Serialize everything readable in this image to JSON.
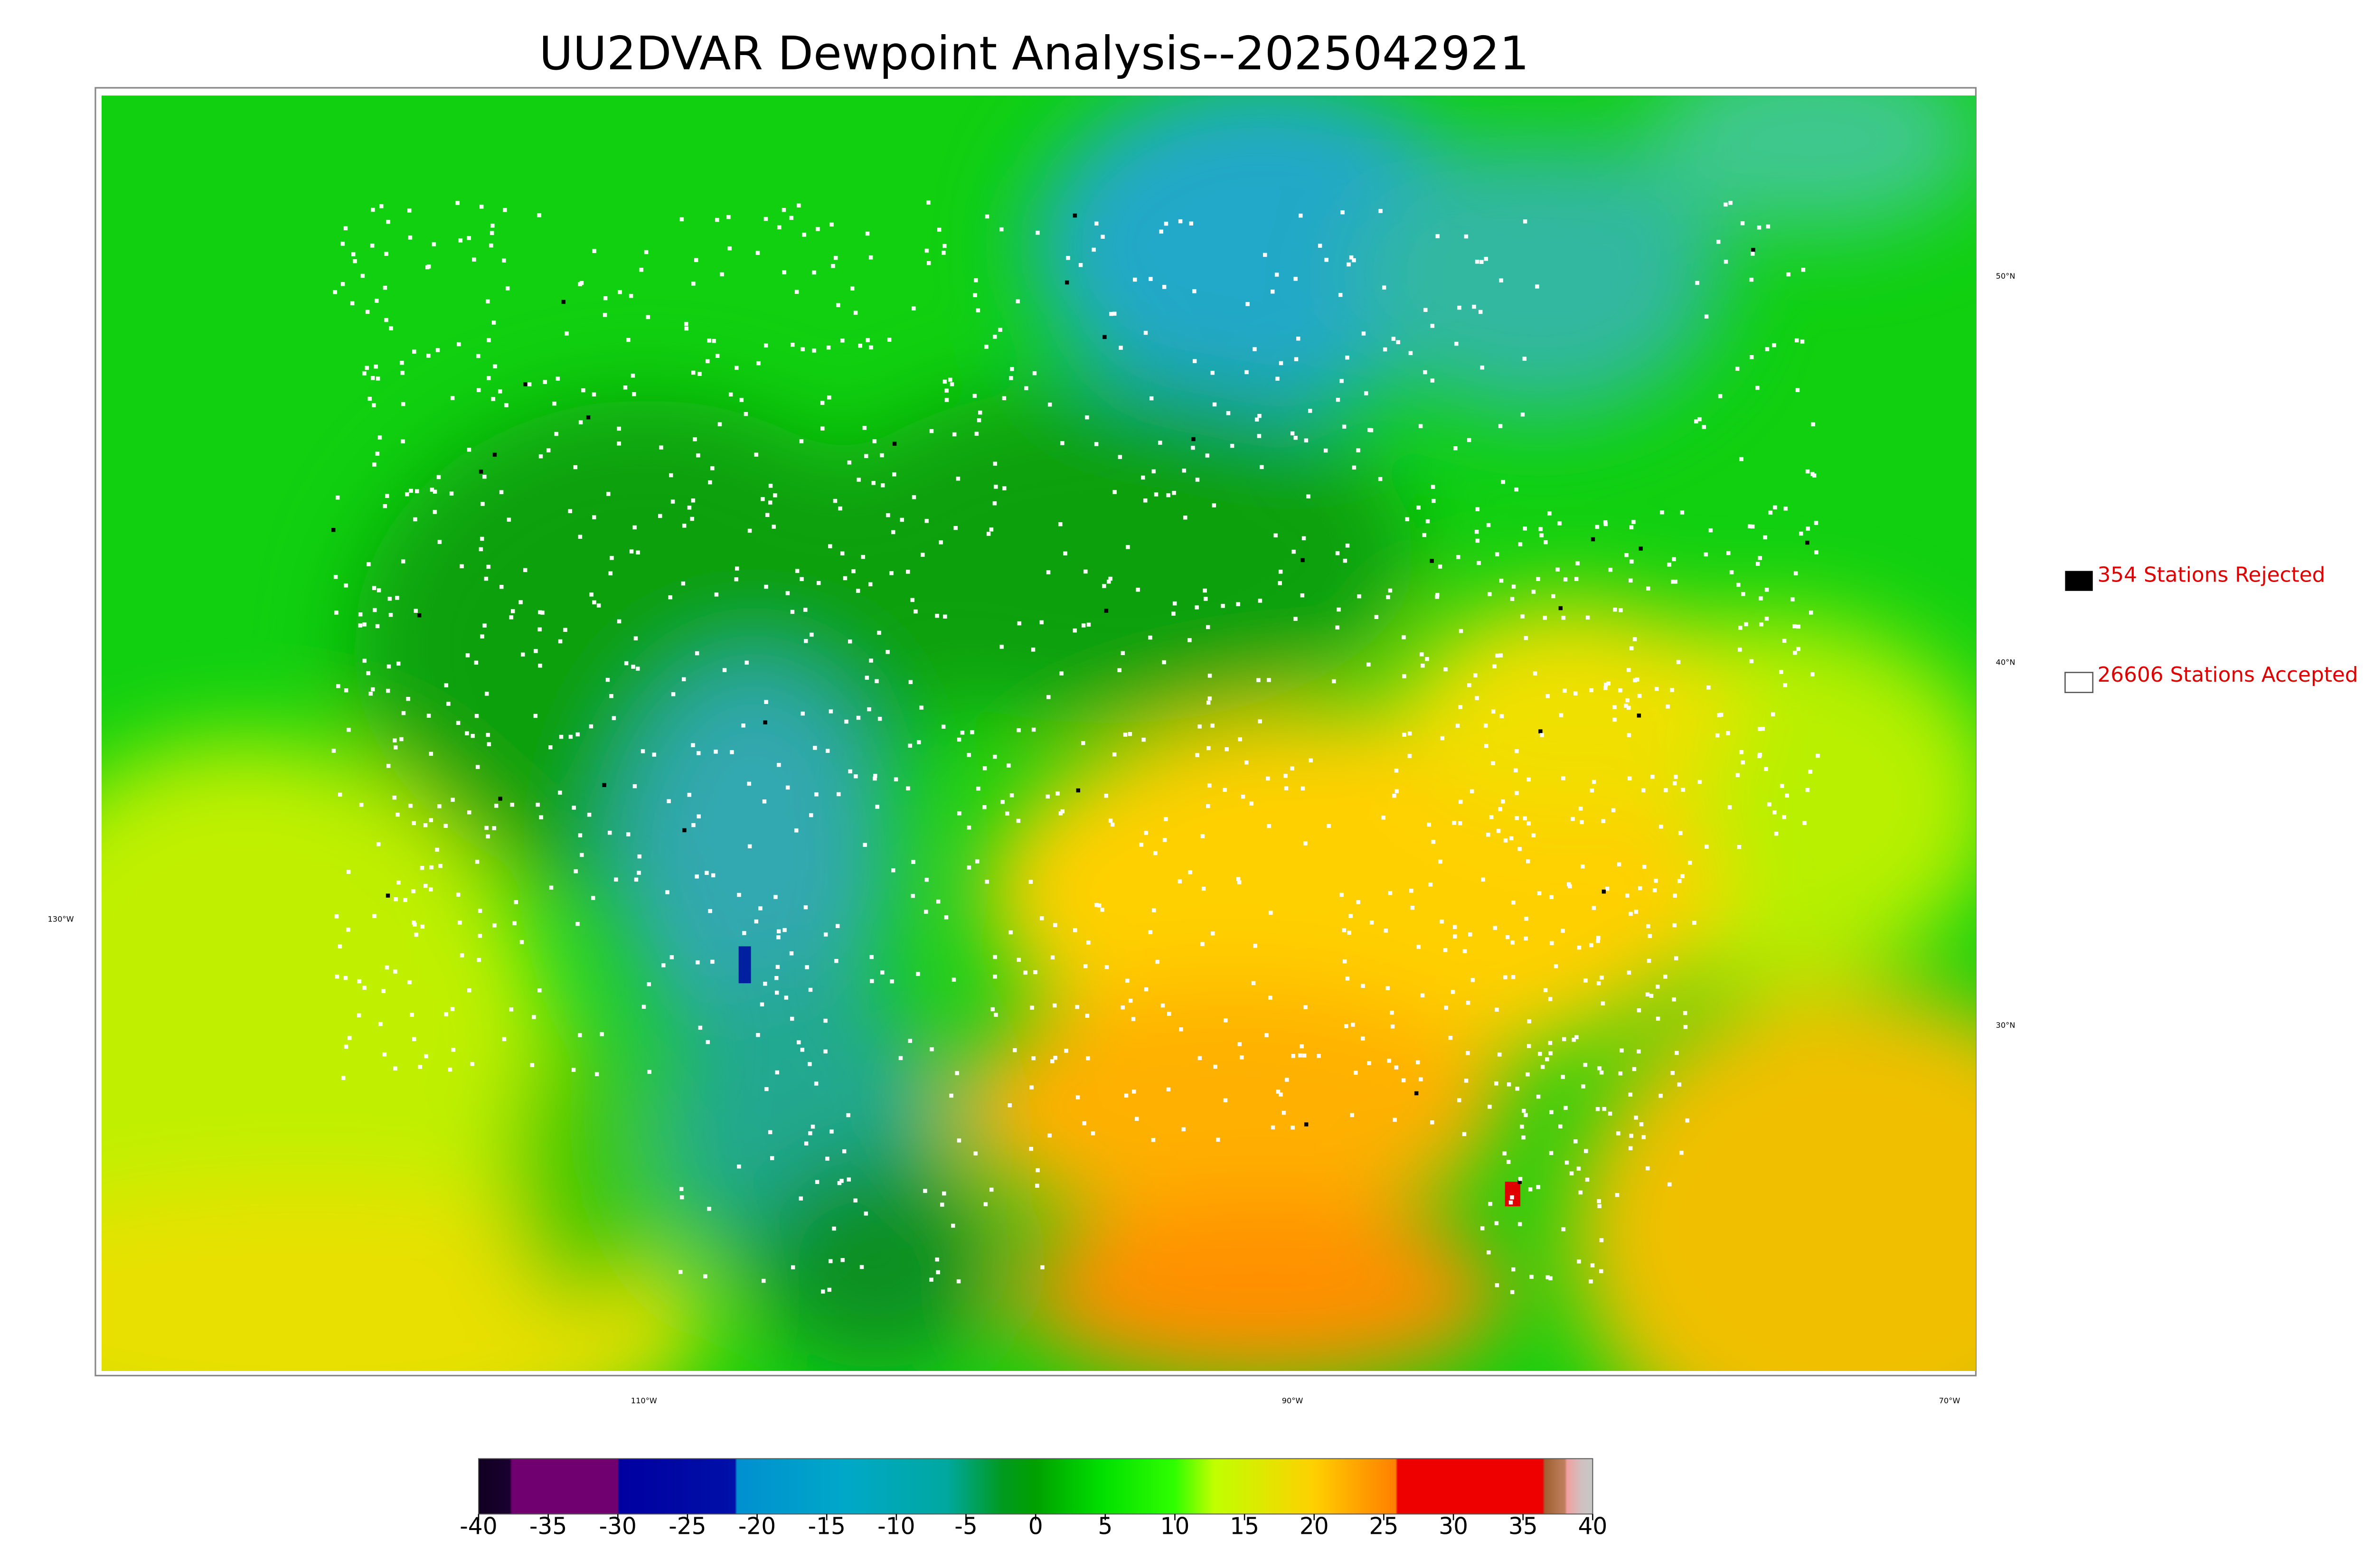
{
  "title": "UU2DVAR Dewpoint Analysis--2025042921",
  "legend": {
    "rejected": "354 Stations Rejected",
    "accepted": "26606 Stations Accepted"
  },
  "map_labels": {
    "lat": [
      "50°N",
      "40°N",
      "30°N"
    ],
    "lon": [
      "130°W",
      "110°W",
      "90°W",
      "70°W"
    ]
  },
  "colorbar": {
    "lim": [
      -40,
      40
    ],
    "ticks": [
      -40,
      -35,
      -30,
      -25,
      -20,
      -15,
      -10,
      -5,
      0,
      5,
      10,
      15,
      20,
      25,
      30,
      35,
      40
    ]
  }
}
